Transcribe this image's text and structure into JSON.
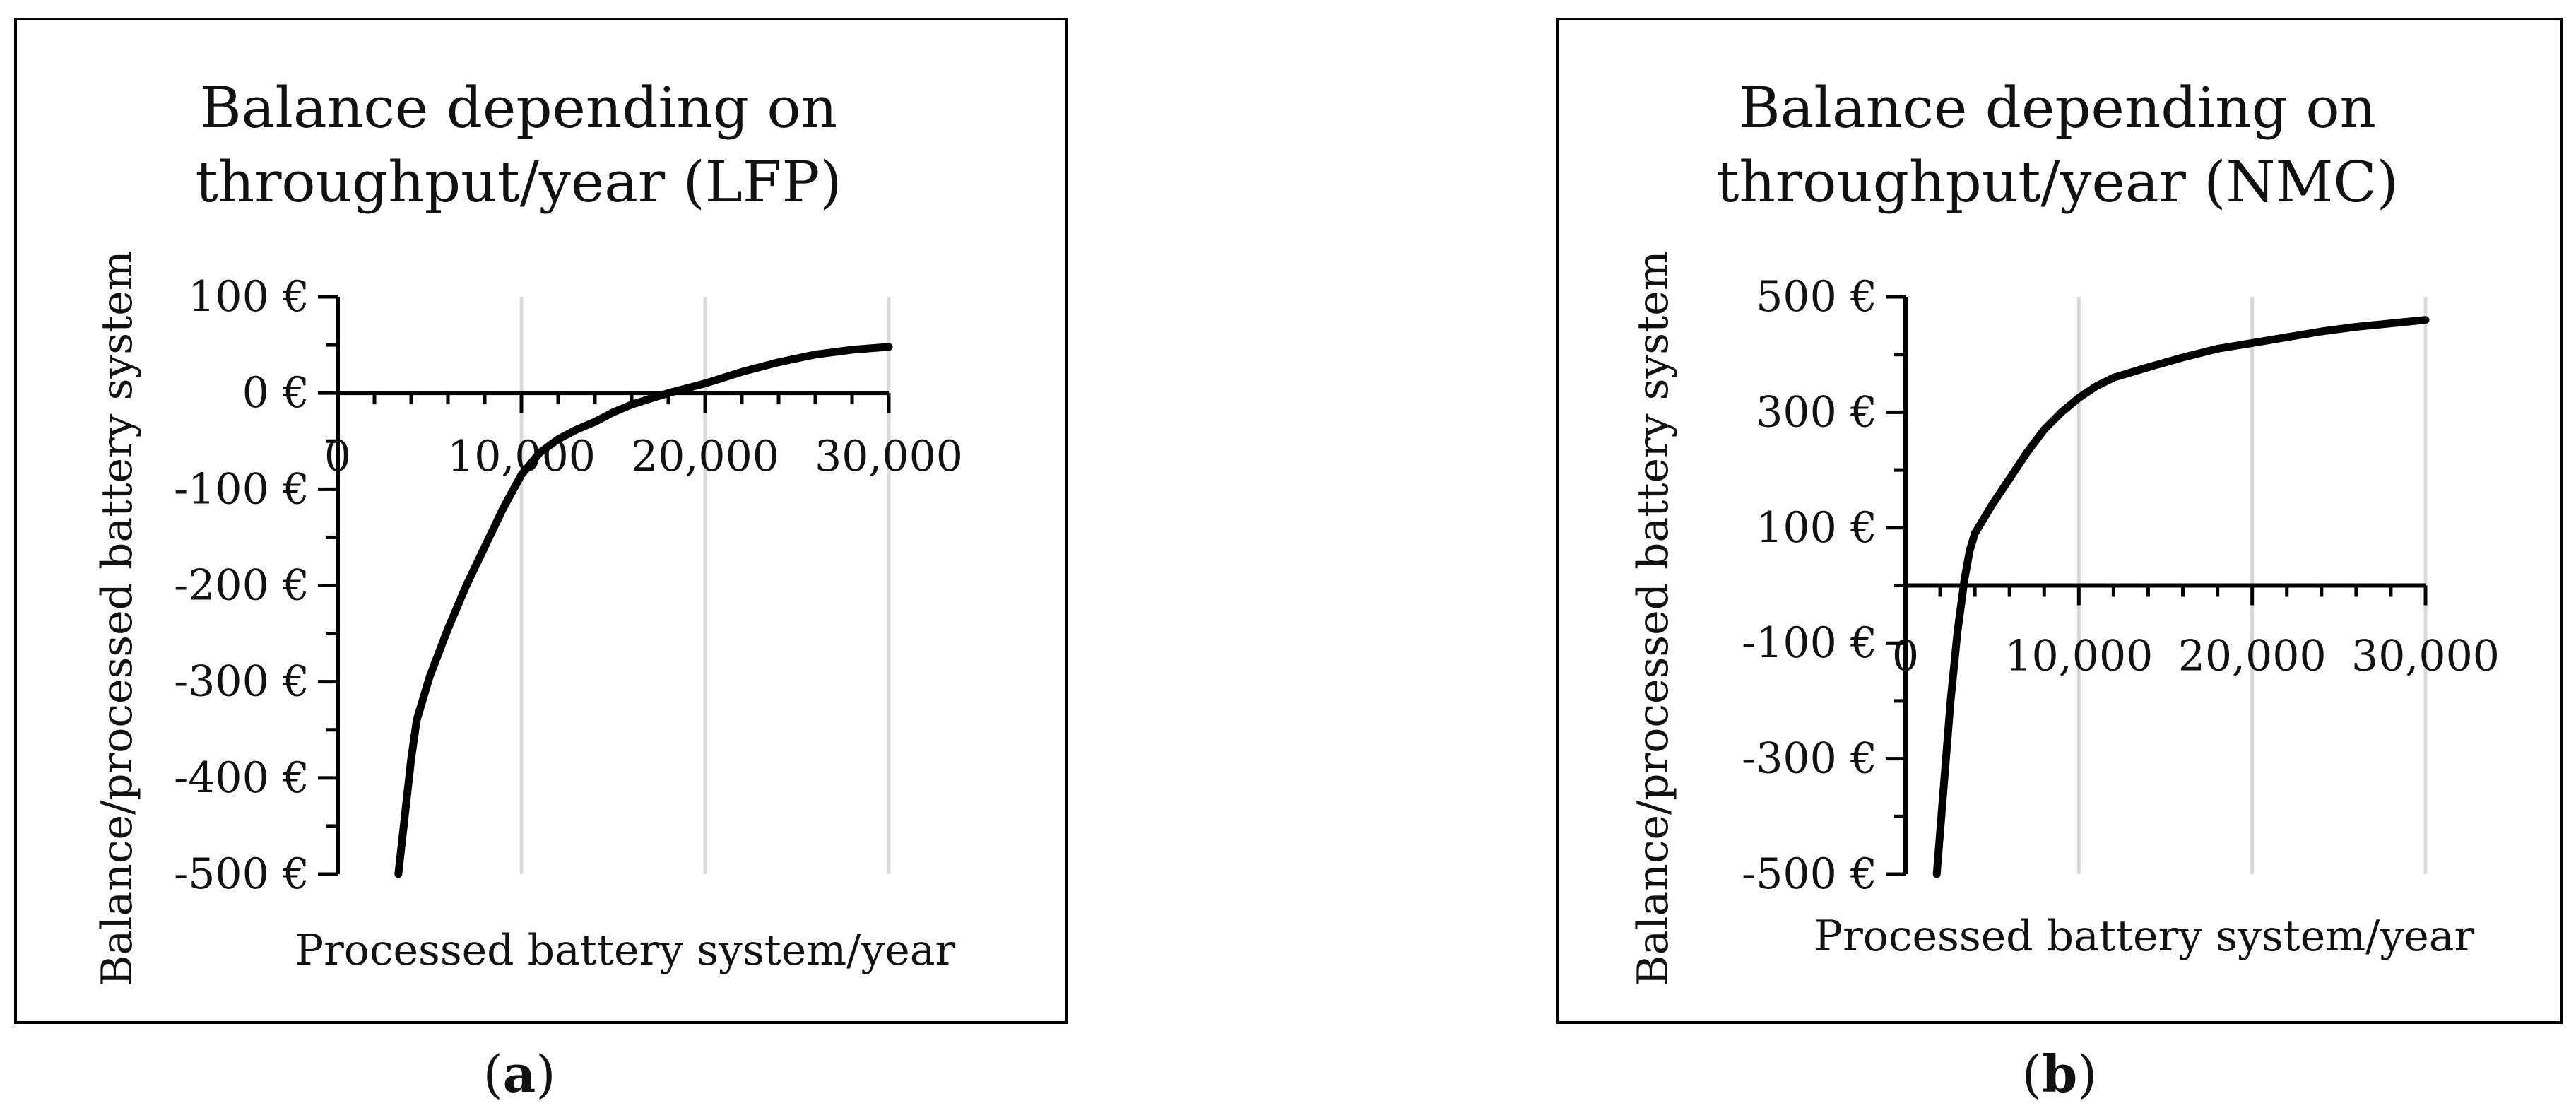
{
  "chart_data": [
    {
      "panel_label": "a",
      "type": "line",
      "title": "Balance depending on throughput/year (LFP)",
      "title_lines": [
        "Balance depending on",
        "throughput/year (LFP)"
      ],
      "xlabel": "Processed battery system/year",
      "ylabel": "Balance/processed battery system",
      "xlim": [
        0,
        30000
      ],
      "ylim": [
        -500,
        100
      ],
      "x_ticks": [
        0,
        10000,
        20000,
        30000
      ],
      "x_tick_labels": [
        "0",
        "10,000",
        "20,000",
        "30,000"
      ],
      "y_ticks": [
        100,
        0,
        -100,
        -200,
        -300,
        -400,
        -500
      ],
      "y_tick_labels": [
        "100 €",
        "0 €",
        "-100 €",
        "-200 €",
        "-300 €",
        "-400 €",
        "-500 €"
      ],
      "grid": "vertical",
      "color": "#000000",
      "series": [
        {
          "x": [
            3300,
            4000,
            4300,
            5000,
            6000,
            7000,
            8000,
            9000,
            10000,
            11000,
            12000,
            13000,
            14000,
            15000,
            16000,
            17000,
            18000,
            20000,
            22000,
            24000,
            26000,
            28000,
            30000
          ],
          "y": [
            -500,
            -380,
            -340,
            -295,
            -245,
            -200,
            -160,
            -120,
            -85,
            -62,
            -48,
            -38,
            -30,
            -20,
            -12,
            -6,
            0,
            10,
            22,
            32,
            40,
            45,
            48
          ]
        }
      ]
    },
    {
      "panel_label": "b",
      "type": "line",
      "title": "Balance depending on throughput/year (NMC)",
      "title_lines": [
        "Balance depending on",
        "throughput/year (NMC)"
      ],
      "xlabel": "Processed battery system/year",
      "ylabel": "Balance/processed battery system",
      "xlim": [
        0,
        30000
      ],
      "ylim": [
        -500,
        500
      ],
      "x_ticks": [
        0,
        10000,
        20000,
        30000
      ],
      "x_tick_labels": [
        "0",
        "10,000",
        "20,000",
        "30,000"
      ],
      "y_ticks": [
        500,
        300,
        100,
        -100,
        -300,
        -500
      ],
      "y_tick_labels": [
        "500 €",
        "300 €",
        "100 €",
        "-100 €",
        "-300 €",
        "-500 €"
      ],
      "grid": "vertical",
      "color": "#000000",
      "series": [
        {
          "x": [
            1800,
            2200,
            2600,
            3000,
            3400,
            3700,
            4000,
            5000,
            6000,
            7000,
            8000,
            9000,
            10000,
            11000,
            12000,
            14000,
            16000,
            18000,
            20000,
            22000,
            24000,
            26000,
            28000,
            30000
          ],
          "y": [
            -500,
            -350,
            -200,
            -80,
            10,
            60,
            90,
            140,
            185,
            230,
            270,
            300,
            325,
            345,
            360,
            378,
            395,
            410,
            420,
            430,
            440,
            448,
            454,
            460
          ]
        }
      ]
    }
  ]
}
